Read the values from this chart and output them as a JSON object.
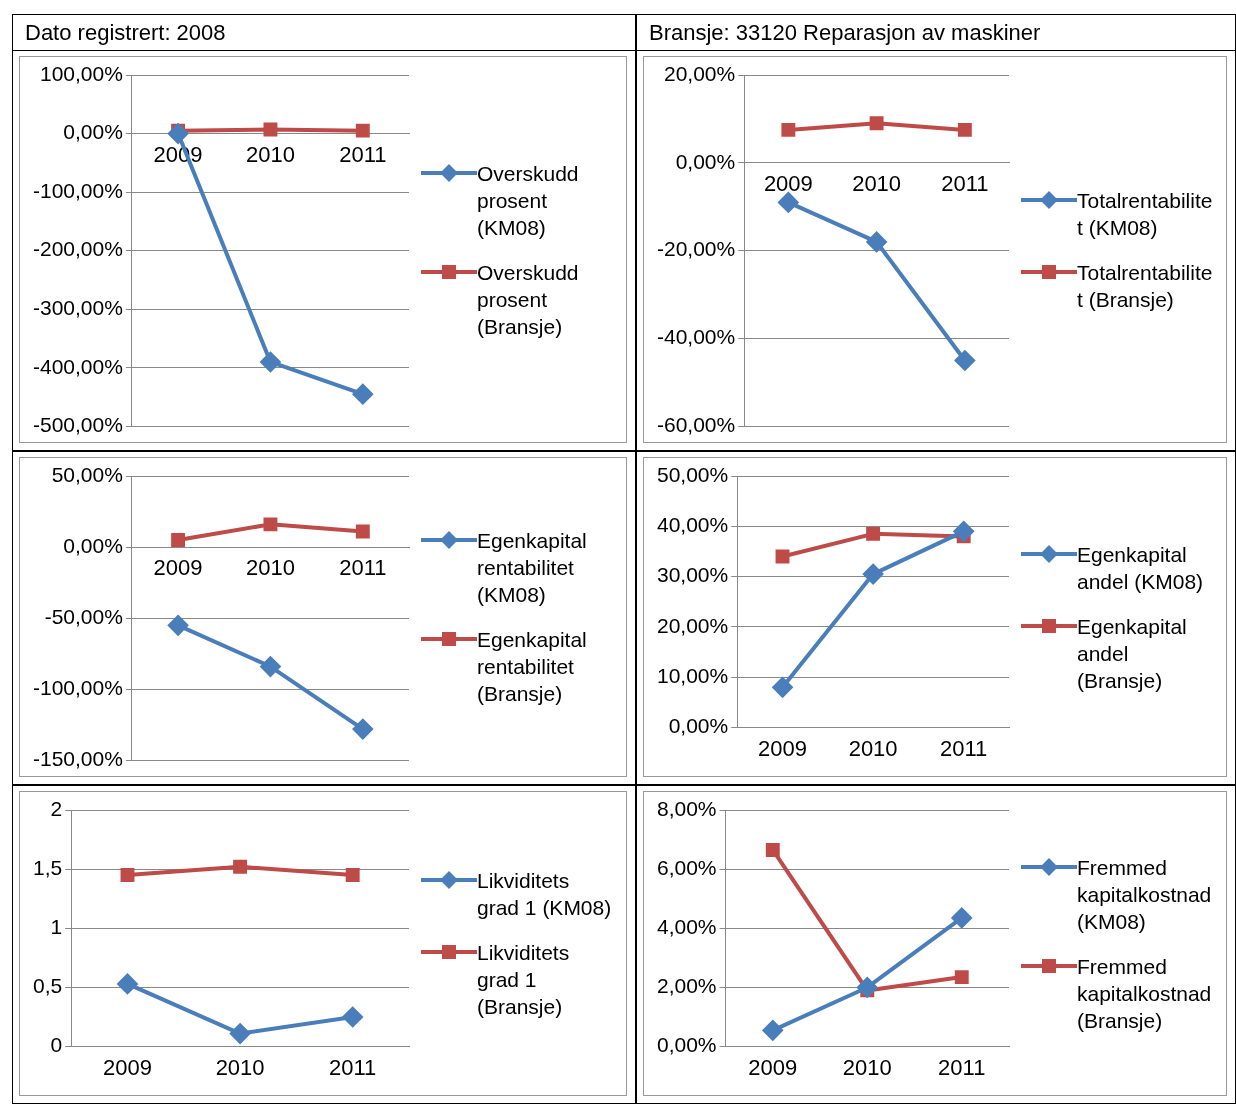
{
  "chart_data": [
    {
      "type": "line",
      "title": "Dato registrert: 2008",
      "categories": [
        "2009",
        "2010",
        "2011"
      ],
      "ylim": [
        -500,
        100
      ],
      "yticks": [
        {
          "value": -500,
          "label": "-500,00%"
        },
        {
          "value": -400,
          "label": "-400,00%"
        },
        {
          "value": -300,
          "label": "-300,00%"
        },
        {
          "value": -200,
          "label": "-200,00%"
        },
        {
          "value": -100,
          "label": "-100,00%"
        },
        {
          "value": 0,
          "label": "0,00%"
        },
        {
          "value": 100,
          "label": "100,00%"
        }
      ],
      "grid": "y",
      "legend": "right",
      "line_style": "solid",
      "series": [
        {
          "name": "Overskudd prosent (KM08)",
          "color": "#4a7ebb",
          "marker": "diamond",
          "values": [
            0,
            -390,
            -445
          ]
        },
        {
          "name": "Overskudd prosent (Bransje)",
          "color": "#be4b48",
          "marker": "square",
          "values": [
            5,
            7,
            5
          ]
        }
      ]
    },
    {
      "type": "line",
      "title": "Bransje: 33120 Reparasjon av maskiner",
      "categories": [
        "2009",
        "2010",
        "2011"
      ],
      "ylim": [
        -60,
        20
      ],
      "yticks": [
        {
          "value": -60,
          "label": "-60,00%"
        },
        {
          "value": -40,
          "label": "-40,00%"
        },
        {
          "value": -20,
          "label": "-20,00%"
        },
        {
          "value": 0,
          "label": "0,00%"
        },
        {
          "value": 20,
          "label": "20,00%"
        }
      ],
      "grid": "y",
      "legend": "right",
      "line_style": "solid",
      "series": [
        {
          "name": "Totalrentabilitet (KM08)",
          "color": "#4a7ebb",
          "marker": "diamond",
          "values": [
            -9,
            -18,
            -45
          ]
        },
        {
          "name": "Totalrentabilitet (Bransje)",
          "color": "#be4b48",
          "marker": "square",
          "values": [
            7.5,
            9,
            7.5
          ]
        }
      ]
    },
    {
      "type": "line",
      "categories": [
        "2009",
        "2010",
        "2011"
      ],
      "ylim": [
        -150,
        50
      ],
      "yticks": [
        {
          "value": -150,
          "label": "-150,00%"
        },
        {
          "value": -100,
          "label": "-100,00%"
        },
        {
          "value": -50,
          "label": "-50,00%"
        },
        {
          "value": 0,
          "label": "0,00%"
        },
        {
          "value": 50,
          "label": "50,00%"
        }
      ],
      "grid": "y",
      "legend": "right",
      "line_style": "solid",
      "series": [
        {
          "name": "Egenkapital rentabilitet (KM08)",
          "color": "#4a7ebb",
          "marker": "diamond",
          "values": [
            -55,
            -84,
            -128
          ]
        },
        {
          "name": "Egenkapital rentabilitet (Bransje)",
          "color": "#be4b48",
          "marker": "square",
          "values": [
            5,
            16,
            11
          ]
        }
      ]
    },
    {
      "type": "line",
      "categories": [
        "2009",
        "2010",
        "2011"
      ],
      "ylim": [
        0,
        50
      ],
      "yticks": [
        {
          "value": 0,
          "label": "0,00%"
        },
        {
          "value": 10,
          "label": "10,00%"
        },
        {
          "value": 20,
          "label": "20,00%"
        },
        {
          "value": 30,
          "label": "30,00%"
        },
        {
          "value": 40,
          "label": "40,00%"
        },
        {
          "value": 50,
          "label": "50,00%"
        }
      ],
      "grid": "y",
      "legend": "right",
      "line_style": "solid",
      "series": [
        {
          "name": "Egenkapital andel (KM08)",
          "color": "#4a7ebb",
          "marker": "diamond",
          "values": [
            8,
            30.5,
            39
          ]
        },
        {
          "name": "Egenkapital andel (Bransje)",
          "color": "#be4b48",
          "marker": "square",
          "values": [
            34,
            38.5,
            38
          ]
        }
      ]
    },
    {
      "type": "line",
      "categories": [
        "2009",
        "2010",
        "2011"
      ],
      "ylim": [
        0,
        2
      ],
      "yticks": [
        0,
        {
          "value": 0.5,
          "label": "0,5"
        },
        1,
        {
          "value": 1.5,
          "label": "1,5"
        },
        2
      ],
      "grid": "y",
      "legend": "right",
      "line_style": "solid",
      "series": [
        {
          "name": "Likviditets grad 1 (KM08)",
          "color": "#4a7ebb",
          "marker": "diamond",
          "values": [
            0.53,
            0.11,
            0.25
          ]
        },
        {
          "name": "Likviditets grad 1 (Bransje)",
          "color": "#be4b48",
          "marker": "square",
          "values": [
            1.45,
            1.52,
            1.45
          ]
        }
      ]
    },
    {
      "type": "line",
      "categories": [
        "2009",
        "2010",
        "2011"
      ],
      "ylim": [
        0,
        8
      ],
      "yticks": [
        {
          "value": 0,
          "label": "0,00%"
        },
        {
          "value": 2,
          "label": "2,00%"
        },
        {
          "value": 4,
          "label": "4,00%"
        },
        {
          "value": 6,
          "label": "6,00%"
        },
        {
          "value": 8,
          "label": "8,00%"
        }
      ],
      "grid": "y",
      "legend": "right",
      "line_style": "solid",
      "series": [
        {
          "name": "Fremmed kapitalkostnad (KM08)",
          "color": "#4a7ebb",
          "marker": "diamond",
          "values": [
            0.55,
            2.0,
            4.35
          ]
        },
        {
          "name": "Fremmed kapitalkostnad (Bransje)",
          "color": "#be4b48",
          "marker": "square",
          "values": [
            6.65,
            1.9,
            2.35
          ]
        }
      ]
    }
  ]
}
